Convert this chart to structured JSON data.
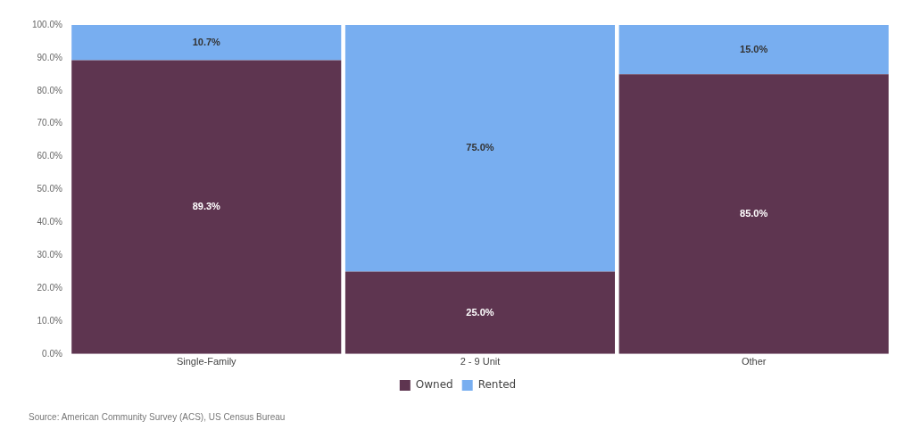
{
  "chart_data": {
    "type": "bar",
    "stacked": true,
    "categories": [
      "Single-Family",
      "2 - 9 Unit",
      "Other"
    ],
    "series": [
      {
        "name": "Owned",
        "color": "#5e3550",
        "values": [
          89.3,
          25.0,
          85.0
        ],
        "value_labels": [
          "89.3%",
          "25.0%",
          "85.0%"
        ]
      },
      {
        "name": "Rented",
        "color": "#78aef0",
        "values": [
          10.7,
          75.0,
          15.0
        ],
        "value_labels": [
          "10.7%",
          "75.0%",
          "15.0%"
        ]
      }
    ],
    "ylim": [
      0,
      100
    ],
    "yticks": [
      {
        "value": 0,
        "label": "0.0%"
      },
      {
        "value": 10,
        "label": "10.0%"
      },
      {
        "value": 20,
        "label": "20.0%"
      },
      {
        "value": 30,
        "label": "30.0%"
      },
      {
        "value": 40,
        "label": "40.0%"
      },
      {
        "value": 50,
        "label": "50.0%"
      },
      {
        "value": 60,
        "label": "60.0%"
      },
      {
        "value": 70,
        "label": "70.0%"
      },
      {
        "value": 80,
        "label": "80.0%"
      },
      {
        "value": 90,
        "label": "90.0%"
      },
      {
        "value": 100,
        "label": "100.0%"
      }
    ],
    "grid": false,
    "legend": "bottom",
    "annotations": [
      "Source: American Community Survey (ACS), US Census Bureau"
    ]
  }
}
